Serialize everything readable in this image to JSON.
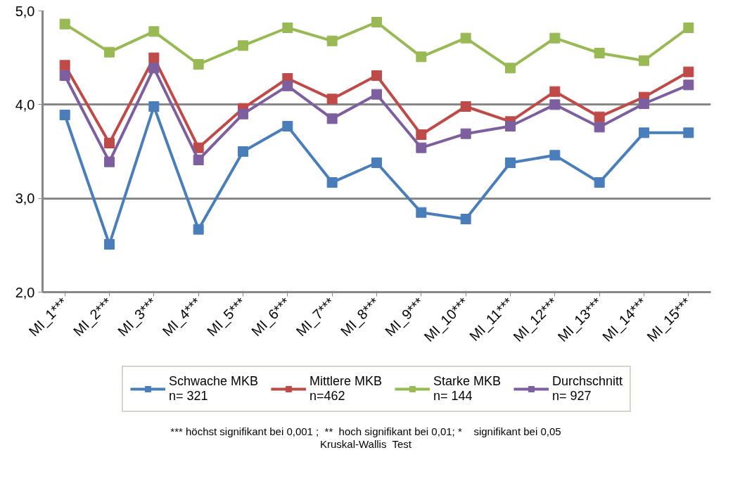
{
  "chart_data": {
    "type": "line",
    "categories": [
      "MI_1***",
      "MI_2***",
      "MI_3***",
      "MI_4***",
      "MI_5***",
      "MI_6***",
      "MI_7***",
      "MI_8***",
      "MI_9***",
      "MI_10***",
      "MI_11***",
      "MI_12***",
      "MI_13***",
      "MI_14***",
      "MI_15***"
    ],
    "series": [
      {
        "name": "Schwache MKB\nn= 321",
        "color": "#4a7ebb",
        "values": [
          3.89,
          2.51,
          3.98,
          2.67,
          3.5,
          3.77,
          3.17,
          3.38,
          2.85,
          2.78,
          3.38,
          3.46,
          3.17,
          3.7,
          3.7
        ]
      },
      {
        "name": "Mittlere MKB\nn=462",
        "color": "#be4b48",
        "values": [
          4.42,
          3.59,
          4.5,
          3.54,
          3.96,
          4.28,
          4.06,
          4.31,
          3.68,
          3.98,
          3.82,
          4.14,
          3.87,
          4.08,
          4.35
        ]
      },
      {
        "name": "Starke MKB\nn= 144",
        "color": "#98b954",
        "values": [
          4.86,
          4.56,
          4.78,
          4.43,
          4.63,
          4.82,
          4.68,
          4.88,
          4.51,
          4.71,
          4.39,
          4.71,
          4.55,
          4.47,
          4.82
        ]
      },
      {
        "name": "Durchschnitt\nn= 927",
        "color": "#7d5fa0",
        "values": [
          4.31,
          3.39,
          4.39,
          3.41,
          3.9,
          4.2,
          3.85,
          4.11,
          3.54,
          3.69,
          3.77,
          4.0,
          3.76,
          4.01,
          4.21
        ]
      }
    ],
    "ylim": [
      2,
      5
    ],
    "yticks": [
      {
        "value": 2,
        "label": "2,0"
      },
      {
        "value": 3,
        "label": "3,0"
      },
      {
        "value": 4,
        "label": "4,0"
      },
      {
        "value": 5,
        "label": "5,0"
      }
    ],
    "grid": "y",
    "legend": "bottom",
    "marker": "square",
    "line_style": "solid",
    "annotations": [
      "*** höchst signifikant bei 0,001 ;  **  hoch signifikant bei 0,01; *    signifikant bei 0,05",
      "Kruskal-Wallis  Test"
    ]
  }
}
